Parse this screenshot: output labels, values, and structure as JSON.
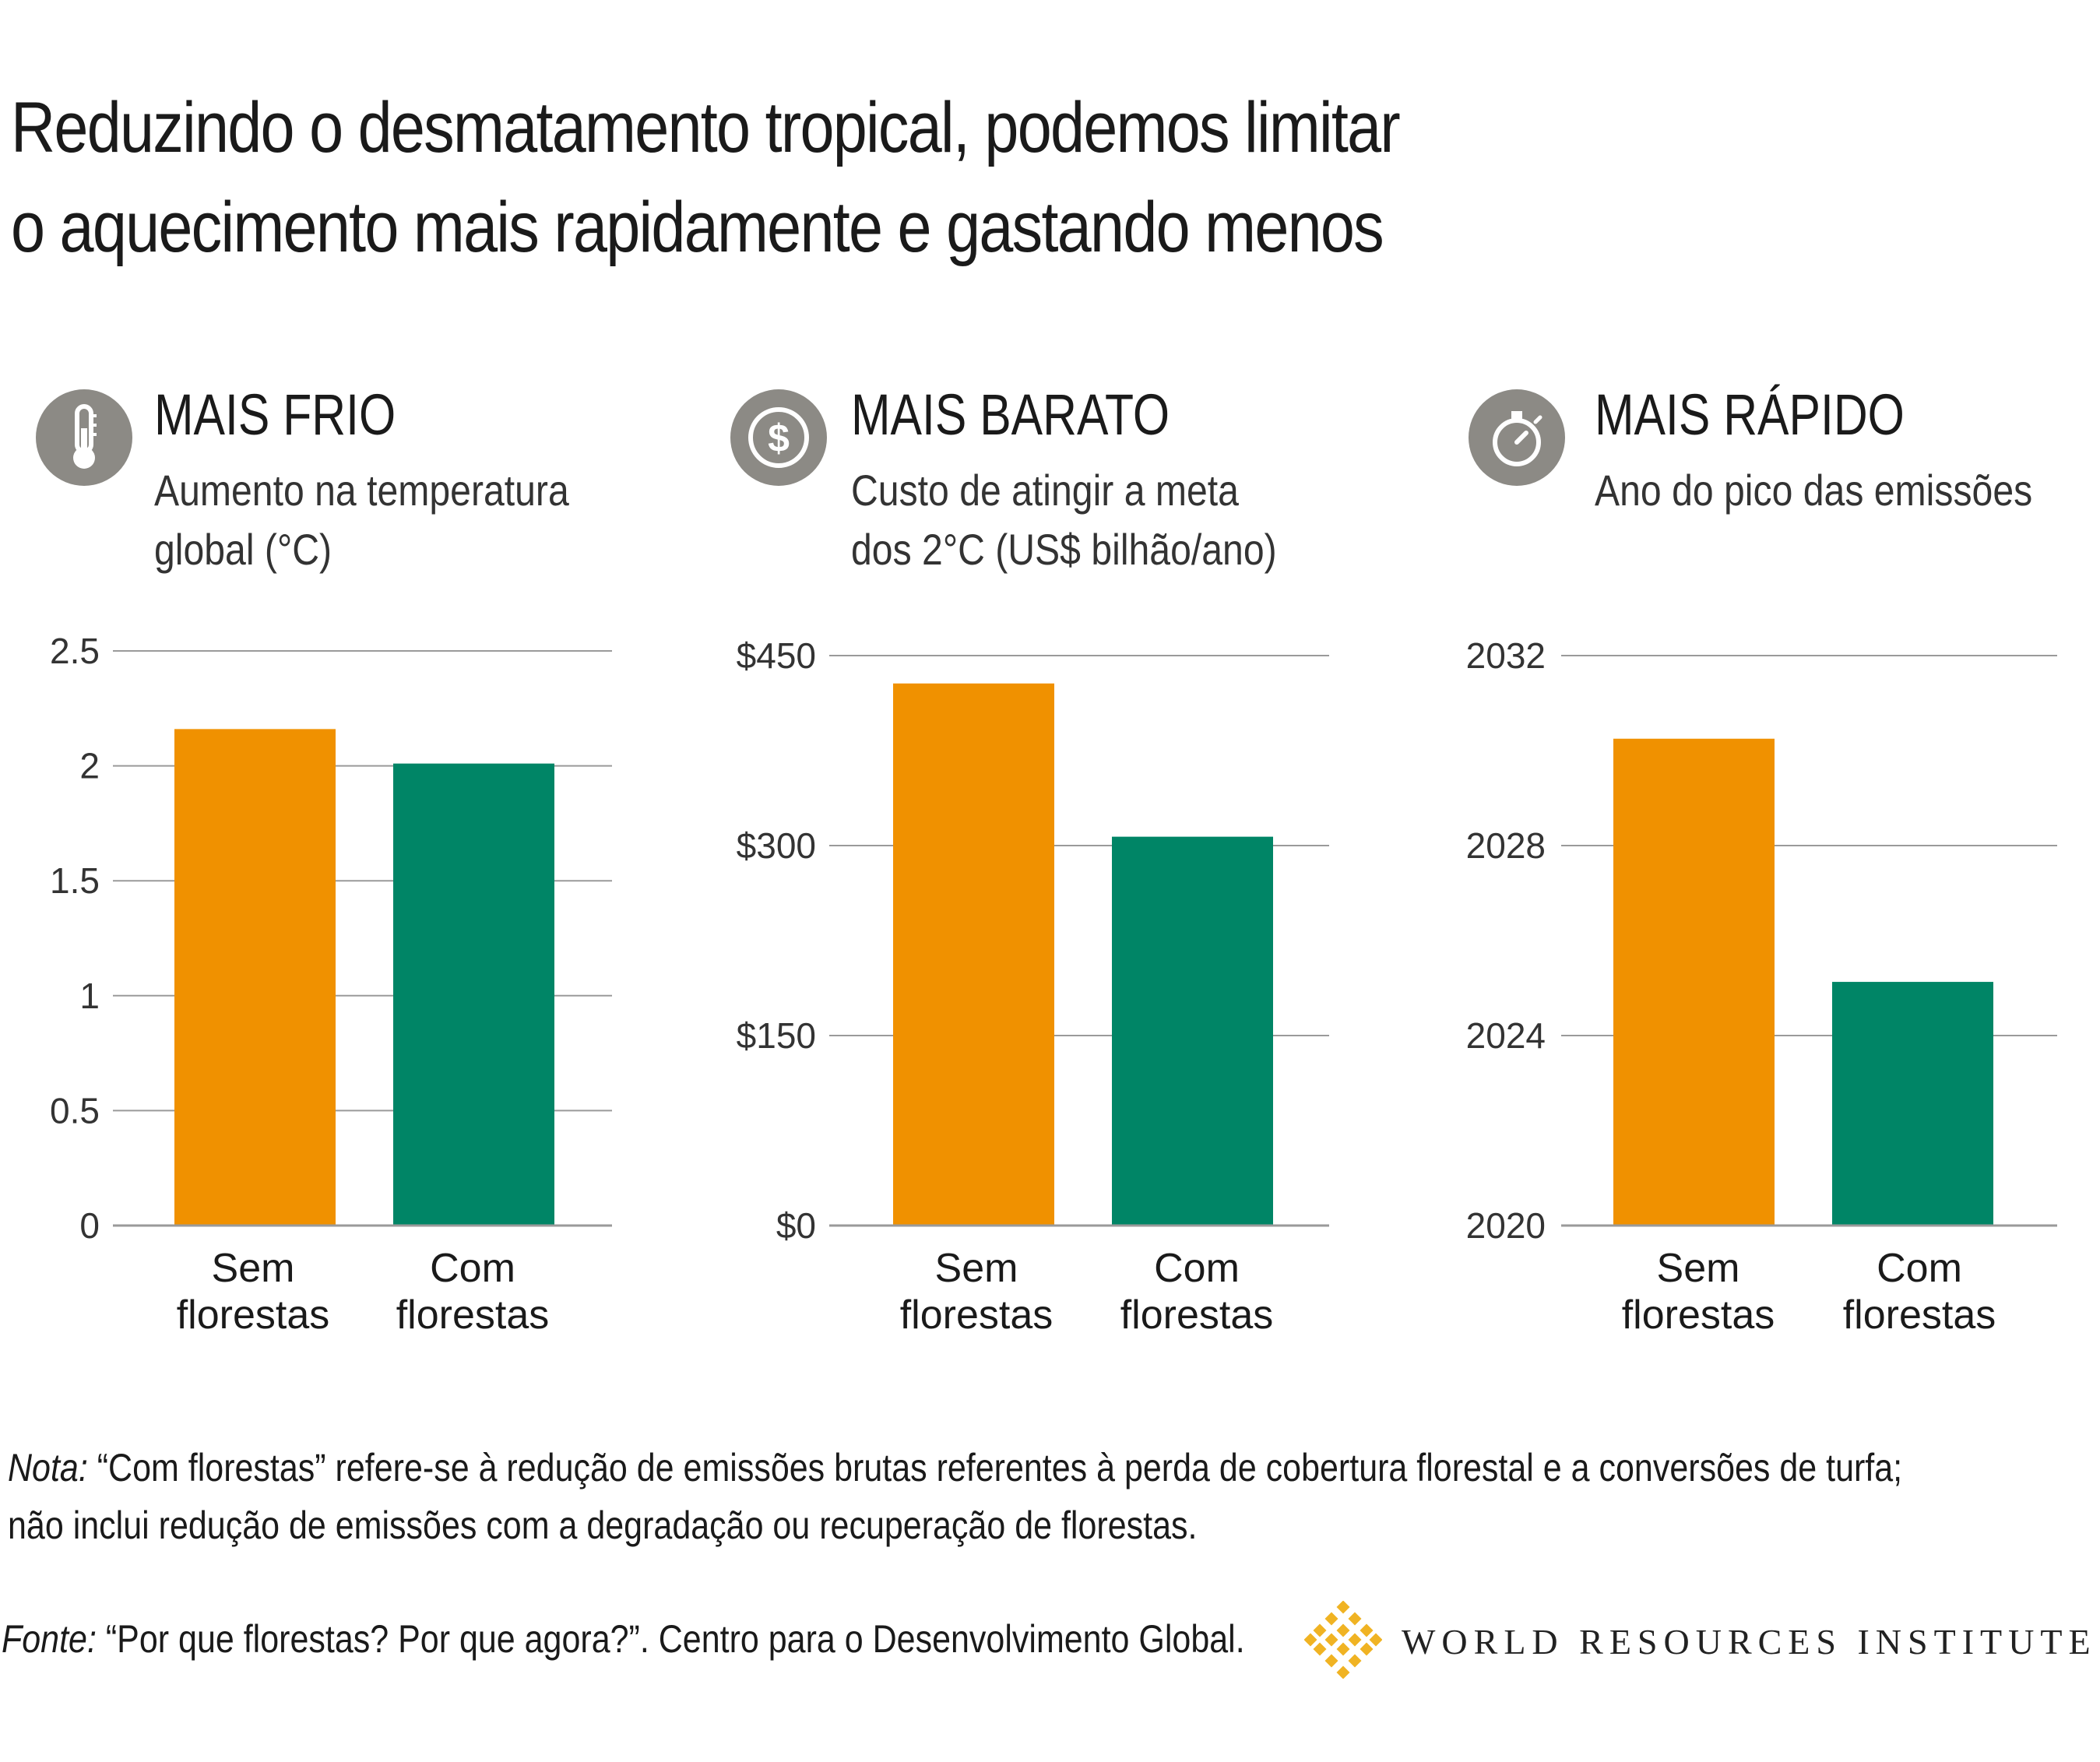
{
  "headline": {
    "line1": "Reduzindo o desmatamento tropical, podemos limitar",
    "line2": "o aquecimento mais rapidamente e gastando menos"
  },
  "colors": {
    "sem": "#F09100",
    "com": "#008566",
    "icon_bg": "#8C8A85",
    "grid": "#9A9A9A"
  },
  "panels": [
    {
      "title": "MAIS FRIO",
      "subtitle1": "Aumento na temperatura",
      "subtitle2": "global (°C)",
      "icon": "thermometer-icon"
    },
    {
      "title": "MAIS BARATO",
      "subtitle1": "Custo de atingir a meta",
      "subtitle2": "dos 2°C (US$ bilhão/ano)",
      "icon": "dollar-icon"
    },
    {
      "title": "MAIS RÁPIDO",
      "subtitle1": "Ano do pico das emissões",
      "subtitle2": "",
      "icon": "stopwatch-icon"
    }
  ],
  "chart_data": [
    {
      "type": "bar",
      "categories": [
        [
          "Sem",
          "florestas"
        ],
        [
          "Com",
          "florestas"
        ]
      ],
      "values": [
        2.16,
        2.01
      ],
      "ylim": [
        0,
        2.5
      ],
      "yticks": [
        0,
        0.5,
        1,
        1.5,
        2,
        2.5
      ],
      "ytick_labels": [
        "0",
        "0.5",
        "1",
        "1.5",
        "2",
        "2.5"
      ],
      "grid": true
    },
    {
      "type": "bar",
      "categories": [
        [
          "Sem",
          "florestas"
        ],
        [
          "Com",
          "florestas"
        ]
      ],
      "values": [
        428,
        307
      ],
      "ylim": [
        0,
        450
      ],
      "yticks": [
        0,
        150,
        300,
        450
      ],
      "ytick_labels": [
        "$0",
        "$150",
        "$300",
        "$450"
      ],
      "grid": true
    },
    {
      "type": "bar",
      "categories": [
        [
          "Sem",
          "florestas"
        ],
        [
          "Com",
          "florestas"
        ]
      ],
      "values": [
        2030.25,
        2025.13
      ],
      "ylim": [
        2020,
        2032
      ],
      "yticks": [
        2020,
        2024,
        2028,
        2032
      ],
      "ytick_labels": [
        "2020",
        "2024",
        "2028",
        "2032"
      ],
      "grid": true
    }
  ],
  "note": {
    "label": "Nota:",
    "line1": " “Com florestas” refere-se à redução de emissões brutas referentes à perda de cobertura florestal e a conversões de turfa;",
    "line2": "não inclui redução de emissões com a degradação ou recuperação de florestas."
  },
  "source": {
    "label": "Fonte:",
    "text": " “Por que florestas? Por que agora?”. Centro para o Desenvolvimento Global."
  },
  "brand": {
    "name": "WORLD RESOURCES INSTITUTE",
    "logo_color": "#F0B323"
  }
}
